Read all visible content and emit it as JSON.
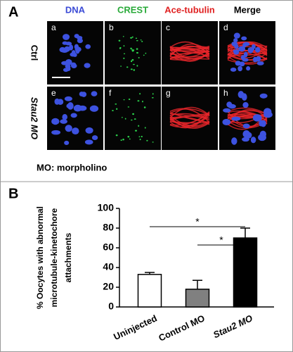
{
  "panel_a": {
    "label": "A",
    "columns": [
      "DNA",
      "CREST",
      "Ace-tubulin",
      "Merge"
    ],
    "rows": [
      "Ctrl",
      "Stau2 MO"
    ],
    "letters": [
      "a",
      "b",
      "c",
      "d",
      "e",
      "f",
      "g",
      "h"
    ],
    "note": "MO: morpholino"
  },
  "chart_data": {
    "type": "bar",
    "label": "B",
    "ylabel": [
      "% Oocytes with abnormal",
      "microtubule-kinetochore",
      "attachments"
    ],
    "categories": [
      "Uninjected",
      "Control MO",
      "Stau2 MO"
    ],
    "values": [
      33,
      18,
      70
    ],
    "errors": [
      2,
      9,
      10
    ],
    "colors": [
      "#ffffff",
      "#808080",
      "#000000"
    ],
    "ylim": [
      0,
      100
    ],
    "yticks": [
      0,
      20,
      40,
      60,
      80,
      100
    ],
    "annotations": [
      "*",
      "*"
    ]
  }
}
